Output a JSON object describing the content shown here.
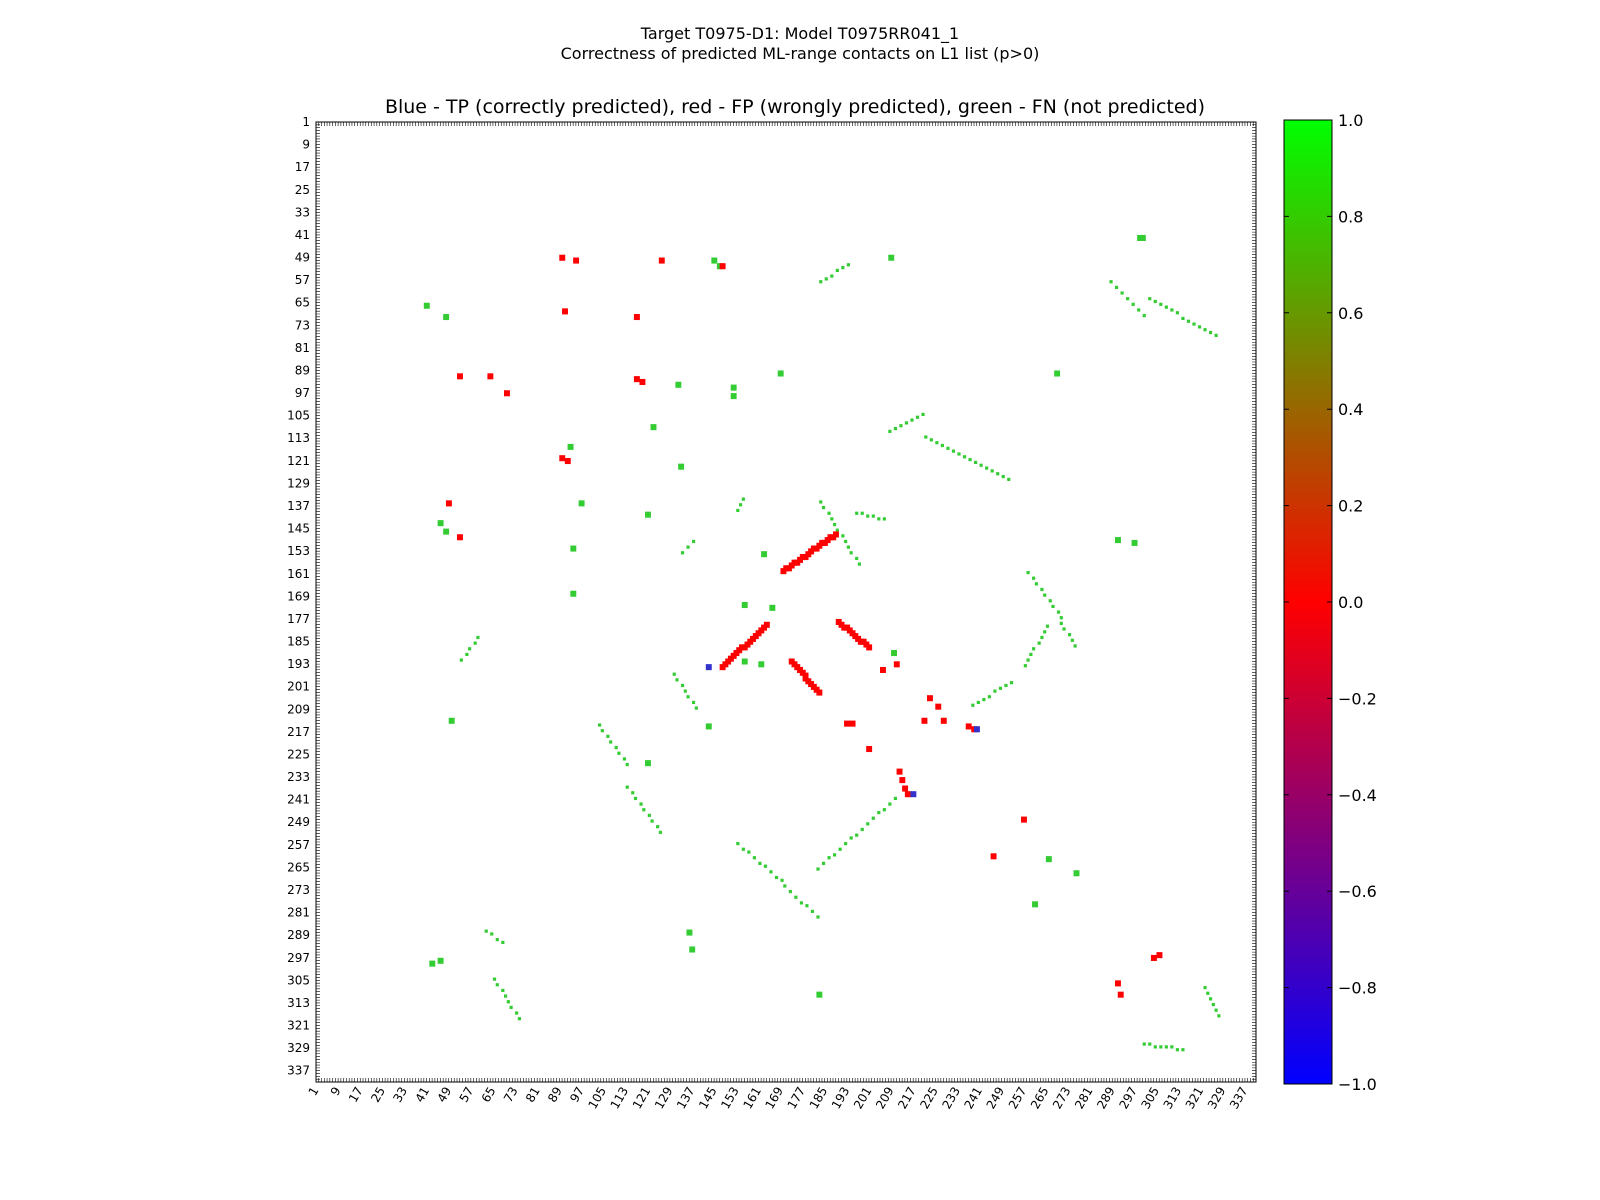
{
  "chart_data": {
    "type": "heatmap",
    "title_line1": "Target T0975-D1: Model T0975RR041_1",
    "title_line2": "Correctness of predicted ML-range contacts on L1 list (p>0)",
    "subtitle": "Blue - TP (correctly predicted), red - FP (wrongly predicted), green - FN (not predicted)",
    "xlabel": "",
    "ylabel": "",
    "xlim": [
      1,
      340
    ],
    "ylim": [
      1,
      340
    ],
    "x_ticks": [
      "1",
      "9",
      "17",
      "25",
      "33",
      "41",
      "49",
      "57",
      "65",
      "73",
      "81",
      "89",
      "97",
      "105",
      "113",
      "121",
      "129",
      "137",
      "145",
      "153",
      "161",
      "169",
      "177",
      "185",
      "193",
      "201",
      "209",
      "217",
      "225",
      "233",
      "241",
      "249",
      "257",
      "265",
      "273",
      "281",
      "289",
      "297",
      "305",
      "313",
      "321",
      "329",
      "337"
    ],
    "y_ticks": [
      "1",
      "9",
      "17",
      "25",
      "33",
      "41",
      "49",
      "57",
      "65",
      "73",
      "81",
      "89",
      "97",
      "105",
      "113",
      "121",
      "129",
      "137",
      "145",
      "153",
      "161",
      "169",
      "177",
      "185",
      "193",
      "201",
      "209",
      "217",
      "225",
      "233",
      "241",
      "249",
      "257",
      "265",
      "273",
      "281",
      "289",
      "297",
      "305",
      "313",
      "321",
      "329",
      "337"
    ],
    "colorbar": {
      "min": -1.0,
      "max": 1.0,
      "ticks": [
        "1.0",
        "0.8",
        "0.6",
        "0.4",
        "0.2",
        "0.0",
        "−0.2",
        "−0.4",
        "−0.6",
        "−0.8",
        "−1.0"
      ],
      "colors": [
        "#0000ff",
        "#ff0000",
        "#00ff00"
      ]
    },
    "series": [
      {
        "value": 1.0,
        "color": "#33cc33",
        "segments": [
          [
            [
              133,
              153
            ],
            [
              138,
              148
            ]
          ],
          [
            [
              153,
              138
            ],
            [
              156,
              133
            ]
          ],
          [
            [
              183,
              135
            ],
            [
              197,
              157
            ]
          ],
          [
            [
              258,
              160
            ],
            [
              270,
              176
            ]
          ],
          [
            [
              270,
              178
            ],
            [
              275,
              186
            ]
          ],
          [
            [
              257,
              193
            ],
            [
              265,
              179
            ]
          ],
          [
            [
              238,
              207
            ],
            [
              252,
              199
            ]
          ],
          [
            [
              153,
              256
            ],
            [
              170,
              270
            ]
          ],
          [
            [
              170,
              271
            ],
            [
              182,
              282
            ]
          ],
          [
            [
              182,
              265
            ],
            [
              210,
              240
            ]
          ],
          [
            [
              103,
              214
            ],
            [
              113,
              228
            ]
          ],
          [
            [
              113,
              236
            ],
            [
              126,
              253
            ]
          ],
          [
            [
              130,
              196
            ],
            [
              138,
              208
            ]
          ],
          [
            [
              183,
              57
            ],
            [
              193,
              51
            ]
          ],
          [
            [
              208,
              110
            ],
            [
              221,
              104
            ]
          ],
          [
            [
              221,
              112
            ],
            [
              251,
              127
            ]
          ],
          [
            [
              196,
              139
            ],
            [
              206,
              141
            ]
          ],
          [
            [
              53,
              191
            ],
            [
              59,
              183
            ]
          ],
          [
            [
              65,
              304
            ],
            [
              74,
              318
            ]
          ],
          [
            [
              62,
              287
            ],
            [
              69,
              292
            ]
          ],
          [
            [
              288,
              57
            ],
            [
              300,
              69
            ]
          ],
          [
            [
              302,
              63
            ],
            [
              326,
              76
            ]
          ],
          [
            [
              300,
              327
            ],
            [
              315,
              329
            ]
          ],
          [
            [
              322,
              307
            ],
            [
              327,
              318
            ]
          ]
        ],
        "blocks": [
          [
            298,
            41
          ],
          [
            208,
            48
          ],
          [
            144,
            49
          ],
          [
            146,
            51
          ],
          [
            42,
            298
          ],
          [
            45,
            297
          ],
          [
            131,
            93
          ],
          [
            122,
            108
          ],
          [
            40,
            65
          ],
          [
            47,
            69
          ],
          [
            151,
            94
          ],
          [
            151,
            97
          ],
          [
            96,
            135
          ],
          [
            93,
            151
          ],
          [
            120,
            139
          ],
          [
            45,
            142
          ],
          [
            47,
            145
          ],
          [
            92,
            115
          ],
          [
            132,
            122
          ],
          [
            209,
            188
          ],
          [
            165,
            172
          ],
          [
            155,
            171
          ],
          [
            162,
            153
          ],
          [
            93,
            167
          ],
          [
            155,
            191
          ],
          [
            161,
            192
          ],
          [
            49,
            212
          ],
          [
            265,
            261
          ],
          [
            275,
            266
          ],
          [
            260,
            277
          ],
          [
            135,
            287
          ],
          [
            136,
            293
          ],
          [
            142,
            214
          ],
          [
            120,
            227
          ],
          [
            299,
            41
          ],
          [
            168,
            89
          ],
          [
            268,
            89
          ],
          [
            290,
            148
          ],
          [
            296,
            149
          ],
          [
            182,
            309
          ]
        ]
      },
      {
        "value": 0.0,
        "color": "#ff0000",
        "segments": [
          [
            [
              169,
              159
            ],
            [
              188,
              146
            ]
          ],
          [
            [
              147,
              193
            ],
            [
              163,
              178
            ]
          ],
          [
            [
              189,
              177
            ],
            [
              200,
              186
            ]
          ],
          [
            [
              172,
              191
            ],
            [
              182,
              202
            ]
          ]
        ],
        "blocks": [
          [
            210,
            192
          ],
          [
            205,
            194
          ],
          [
            192,
            213
          ],
          [
            194,
            213
          ],
          [
            200,
            222
          ],
          [
            211,
            230
          ],
          [
            212,
            233
          ],
          [
            222,
            204
          ],
          [
            225,
            207
          ],
          [
            220,
            212
          ],
          [
            236,
            214
          ],
          [
            238,
            215
          ],
          [
            89,
            119
          ],
          [
            91,
            120
          ],
          [
            116,
            91
          ],
          [
            118,
            92
          ],
          [
            48,
            135
          ],
          [
            52,
            147
          ],
          [
            125,
            49
          ],
          [
            147,
            51
          ],
          [
            89,
            48
          ],
          [
            94,
            49
          ],
          [
            90,
            67
          ],
          [
            116,
            69
          ],
          [
            52,
            90
          ],
          [
            63,
            90
          ],
          [
            69,
            96
          ],
          [
            256,
            247
          ],
          [
            245,
            260
          ],
          [
            303,
            296
          ],
          [
            305,
            295
          ],
          [
            290,
            305
          ],
          [
            291,
            309
          ],
          [
            213,
            236
          ],
          [
            214,
            238
          ],
          [
            227,
            212
          ]
        ]
      },
      {
        "value": -1.0,
        "color": "#3333cc",
        "blocks": [
          [
            142,
            193
          ],
          [
            216,
            238
          ],
          [
            239,
            215
          ]
        ]
      }
    ]
  }
}
